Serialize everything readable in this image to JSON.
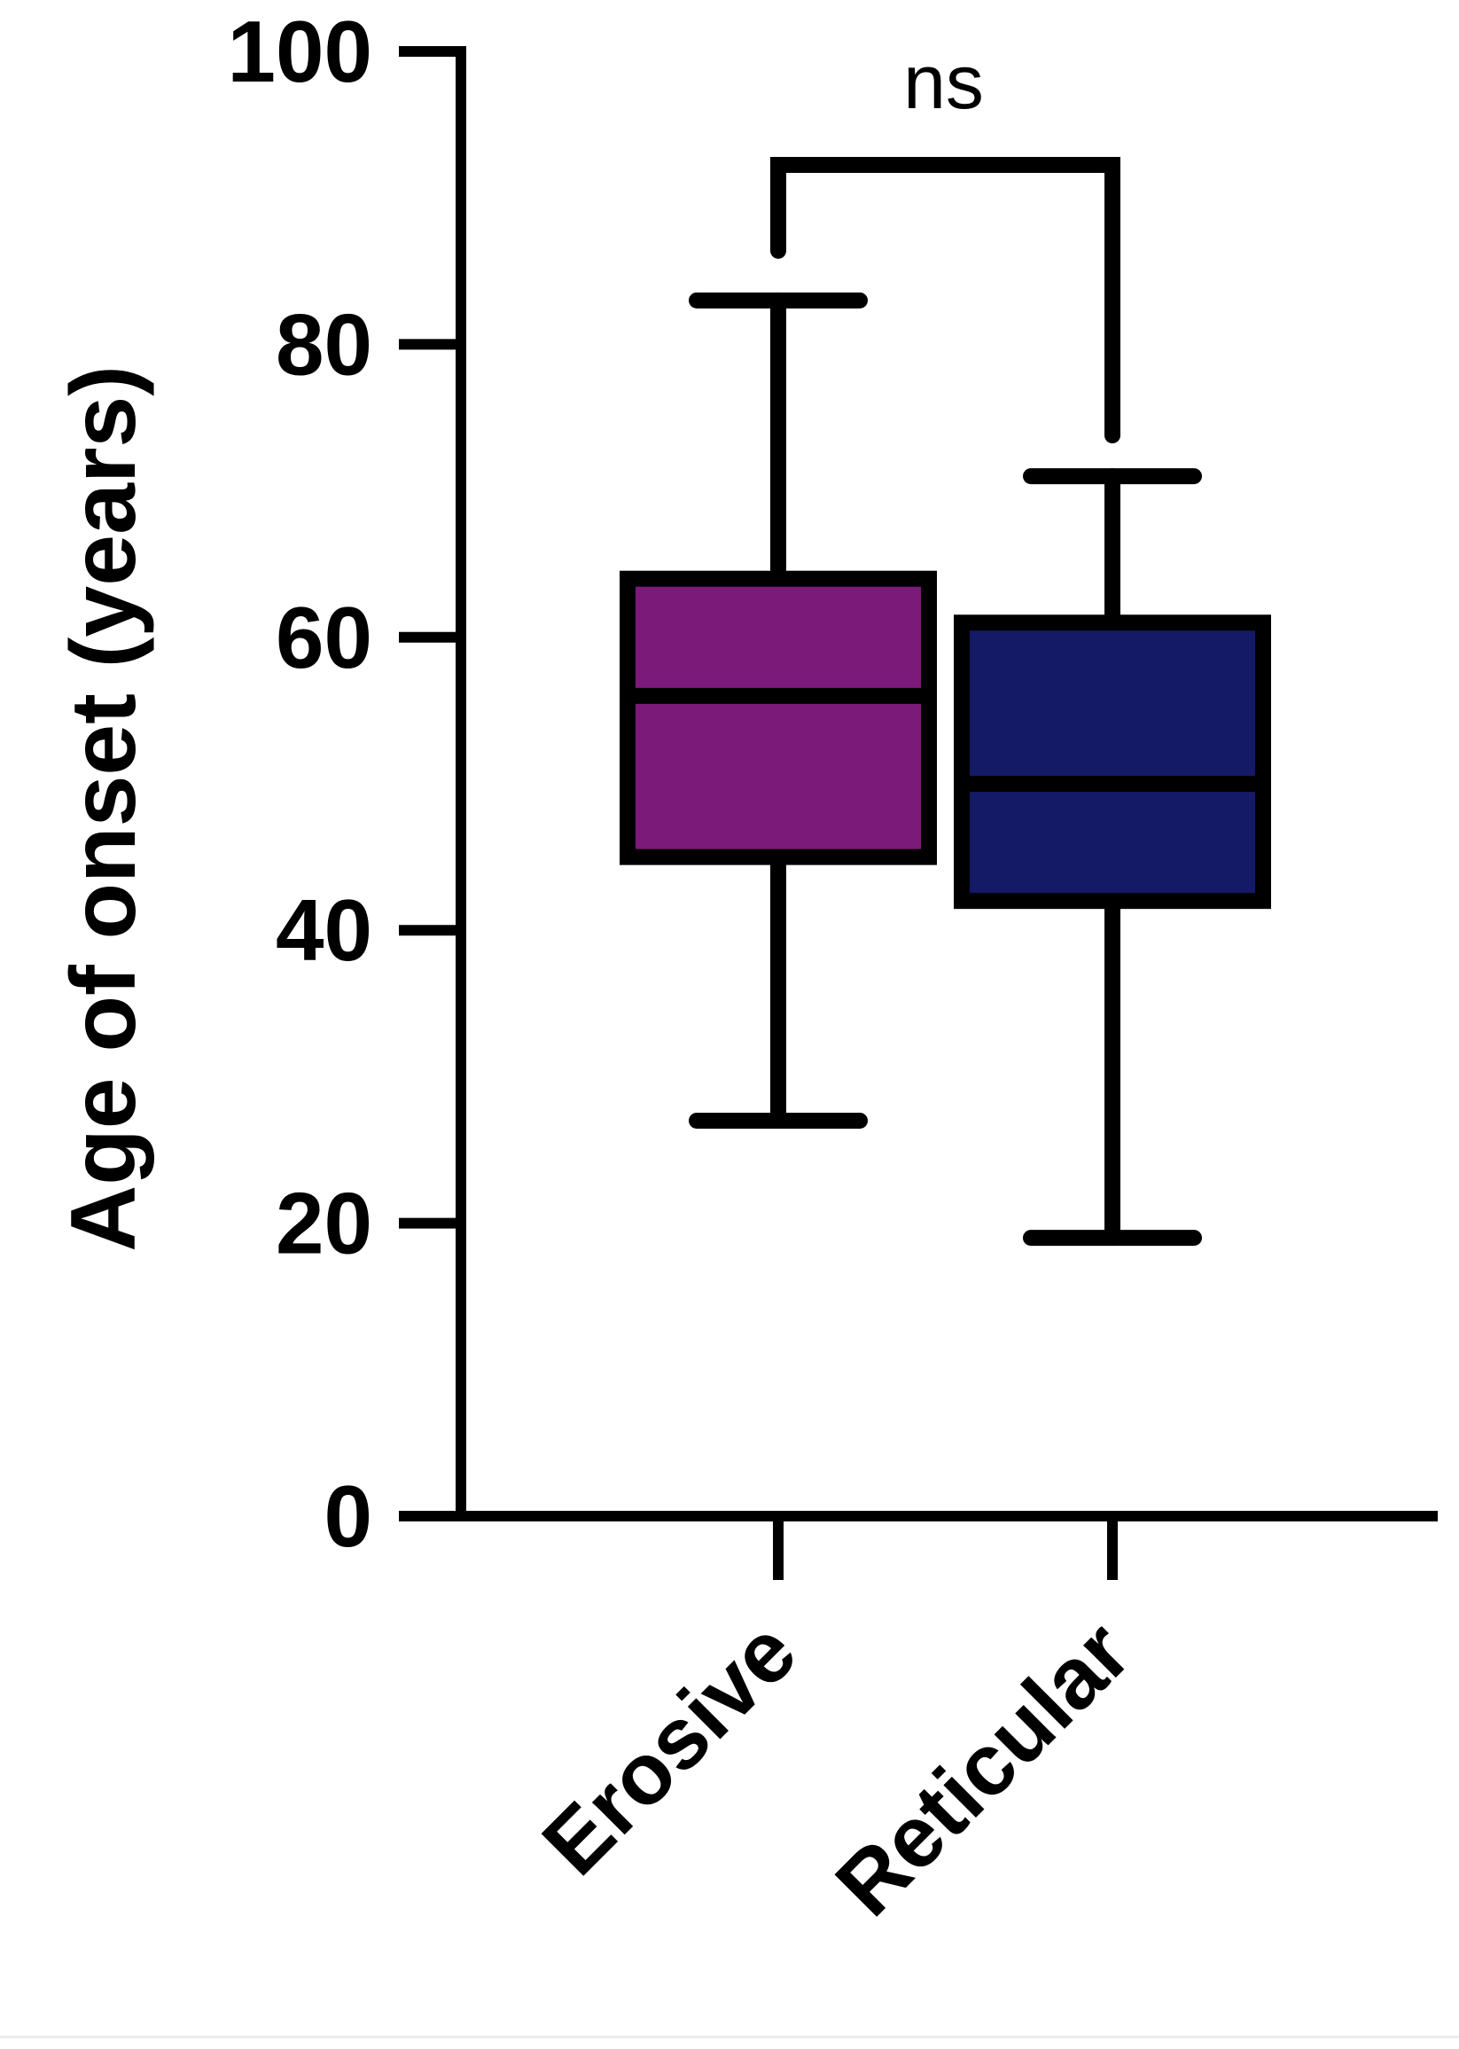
{
  "chart_data": {
    "type": "box",
    "categories": [
      "Erosive",
      "Reticular"
    ],
    "ylabel": "Age of onset (years)",
    "ylim": [
      0,
      100
    ],
    "yticks": [
      0,
      20,
      40,
      60,
      80,
      100
    ],
    "series": [
      {
        "category": "Erosive",
        "min": 27,
        "q1": 45,
        "median": 56,
        "q3": 64,
        "max": 83,
        "color": "#7b1a78"
      },
      {
        "category": "Reticular",
        "min": 19,
        "q1": 42,
        "median": 50,
        "q3": 61,
        "max": 71,
        "color": "#141a66"
      }
    ],
    "annotations": [
      {
        "label": "ns",
        "between": [
          "Erosive",
          "Reticular"
        ]
      }
    ],
    "grid": false
  }
}
